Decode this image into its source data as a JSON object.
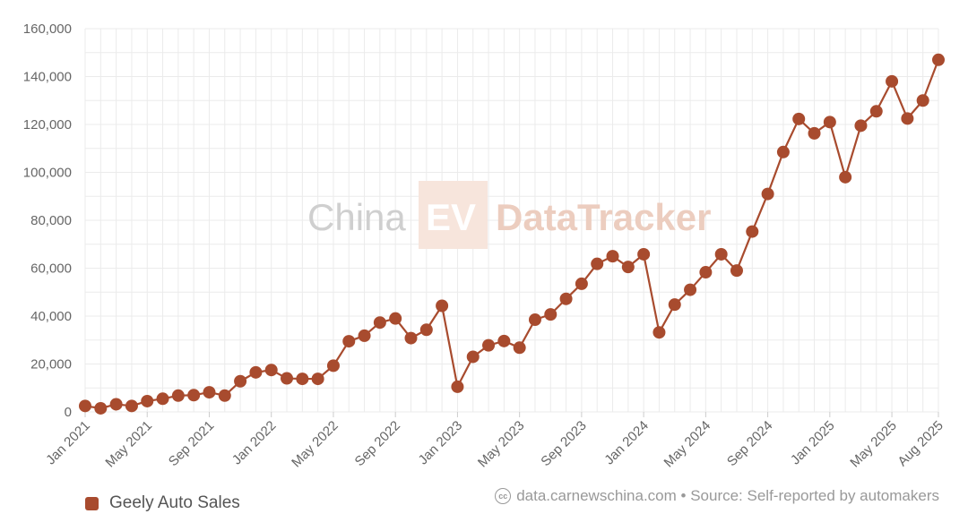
{
  "watermark": {
    "part1": "China",
    "part2": "EV",
    "part3": "DataTracker"
  },
  "legend": {
    "label": "Geely Auto Sales"
  },
  "source": {
    "icon": "cc-icon",
    "text": "data.carnewschina.com • Source: Self-reported by automakers"
  },
  "colors": {
    "series": "#a84b2e",
    "grid": "#ebebeb",
    "watermark_text": "#cfcfcf",
    "watermark_accent": "#eccdbf"
  },
  "chart_data": {
    "type": "line",
    "ylim": [
      0,
      160000
    ],
    "yticks": [
      0,
      20000,
      40000,
      60000,
      80000,
      100000,
      120000,
      140000,
      160000
    ],
    "ytick_labels": [
      "0",
      "20,000",
      "40,000",
      "60,000",
      "80,000",
      "100,000",
      "120,000",
      "140,000",
      "160,000"
    ],
    "grid": true,
    "legend_position": "bottom-left",
    "x": [
      "Jan 2021",
      "Feb 2021",
      "Mar 2021",
      "Apr 2021",
      "May 2021",
      "Jun 2021",
      "Jul 2021",
      "Aug 2021",
      "Sep 2021",
      "Oct 2021",
      "Nov 2021",
      "Dec 2021",
      "Jan 2022",
      "Feb 2022",
      "Mar 2022",
      "Apr 2022",
      "May 2022",
      "Jun 2022",
      "Jul 2022",
      "Aug 2022",
      "Sep 2022",
      "Oct 2022",
      "Nov 2022",
      "Dec 2022",
      "Jan 2023",
      "Feb 2023",
      "Mar 2023",
      "Apr 2023",
      "May 2023",
      "Jun 2023",
      "Jul 2023",
      "Aug 2023",
      "Sep 2023",
      "Oct 2023",
      "Nov 2023",
      "Dec 2023",
      "Jan 2024",
      "Feb 2024",
      "Mar 2024",
      "Apr 2024",
      "May 2024",
      "Jun 2024",
      "Jul 2024",
      "Aug 2024",
      "Sep 2024",
      "Oct 2024",
      "Nov 2024",
      "Dec 2024",
      "Jan 2025",
      "Feb 2025",
      "Mar 2025",
      "Apr 2025",
      "May 2025",
      "Jun 2025",
      "Jul 2025",
      "Aug 2025"
    ],
    "xtick_labels": [
      "Jan 2021",
      "May 2021",
      "Sep 2021",
      "Jan 2022",
      "May 2022",
      "Sep 2022",
      "Jan 2023",
      "May 2023",
      "Sep 2023",
      "Jan 2024",
      "May 2024",
      "Sep 2024",
      "Jan 2025",
      "May 2025",
      "Aug 2025"
    ],
    "series": [
      {
        "name": "Geely Auto Sales",
        "values": [
          2500,
          1500,
          3200,
          2500,
          4500,
          5500,
          6800,
          7000,
          8200,
          6800,
          12800,
          16500,
          17500,
          14000,
          13800,
          13800,
          19300,
          29500,
          31800,
          37300,
          39000,
          30800,
          34300,
          44300,
          10500,
          23000,
          27800,
          29600,
          26800,
          38500,
          40700,
          47200,
          53500,
          61800,
          65000,
          60500,
          65800,
          33200,
          44800,
          51000,
          58300,
          65800,
          59000,
          75300,
          91000,
          108500,
          122300,
          116300,
          121000,
          98000,
          119500,
          125500,
          138000,
          122500,
          130000,
          147000
        ]
      }
    ]
  }
}
